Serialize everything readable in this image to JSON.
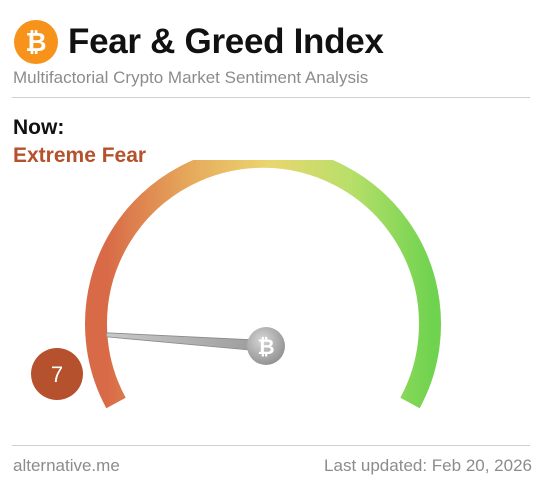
{
  "header": {
    "logo_icon": "bitcoin-icon",
    "title": "Fear & Greed Index",
    "subtitle": "Multifactorial Crypto Market Sentiment Analysis"
  },
  "current": {
    "label": "Now:",
    "classification": "Extreme Fear",
    "classification_color": "#b5512c",
    "value": "7",
    "value_number": 7,
    "scale_min": 0,
    "scale_max": 100,
    "badge_color": "#b5512c"
  },
  "gauge": {
    "gradient_colors": [
      "#d86a47",
      "#e6a85b",
      "#ead66e",
      "#b8df6a",
      "#6fd34f"
    ],
    "needle_icon": "bitcoin-icon"
  },
  "footer": {
    "source": "alternative.me",
    "last_updated": "Last updated: Feb 20, 2026"
  },
  "colors": {
    "bitcoin_orange": "#f7931a",
    "muted_text": "#8c8c8c",
    "divider": "#d0d0d0"
  }
}
